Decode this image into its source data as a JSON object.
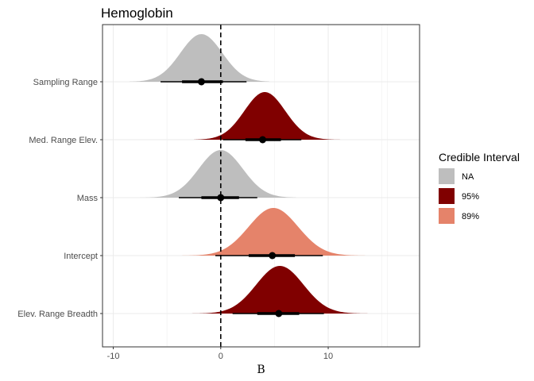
{
  "chart_data": {
    "type": "density-interval",
    "title": "Hemoglobin",
    "xlabel": "B",
    "ylabel": "",
    "xlim": [
      -11,
      18.5
    ],
    "x_ticks": [
      -10,
      0,
      10
    ],
    "x_tick_labels": [
      "-10",
      "0",
      "10"
    ],
    "reference_line": 0,
    "grid": true,
    "legend": {
      "title": "Credible Interval",
      "placement": "right",
      "entries": [
        {
          "label": "NA",
          "color": "#BEBEBE"
        },
        {
          "label": "95%",
          "color": "#800000"
        },
        {
          "label": "89%",
          "color": "#E5836A"
        }
      ]
    },
    "series": [
      {
        "category": "Sampling Range",
        "interval": "NA",
        "color": "#BEBEBE",
        "mean": -1.8,
        "sd": 1.95,
        "point": -1.8,
        "inner": [
          -3.6,
          0.2
        ],
        "outer": [
          -5.6,
          2.4
        ],
        "density_range": [
          -8.5,
          4.5
        ]
      },
      {
        "category": "Med. Range Elev.",
        "interval": "95%",
        "color": "#800000",
        "mean": 4.1,
        "sd": 1.9,
        "point": 3.9,
        "inner": [
          2.3,
          5.6
        ],
        "outer": [
          0.2,
          7.5
        ],
        "density_range": [
          -2.5,
          11.5
        ]
      },
      {
        "category": "Mass",
        "interval": "NA",
        "color": "#BEBEBE",
        "mean": 0.0,
        "sd": 2.05,
        "point": 0.0,
        "inner": [
          -1.8,
          1.7
        ],
        "outer": [
          -3.9,
          3.4
        ],
        "density_range": [
          -7.5,
          7.0
        ]
      },
      {
        "category": "Intercept",
        "interval": "89%",
        "color": "#E5836A",
        "mean": 4.9,
        "sd": 2.3,
        "point": 4.8,
        "inner": [
          2.6,
          6.9
        ],
        "outer": [
          -0.5,
          9.5
        ],
        "density_range": [
          -5,
          15
        ]
      },
      {
        "category": "Elev. Range Breadth",
        "interval": "95%",
        "color": "#800000",
        "mean": 5.5,
        "sd": 2.2,
        "point": 5.4,
        "inner": [
          3.4,
          7.3
        ],
        "outer": [
          1.1,
          9.6
        ],
        "density_range": [
          -3,
          14
        ]
      }
    ]
  }
}
